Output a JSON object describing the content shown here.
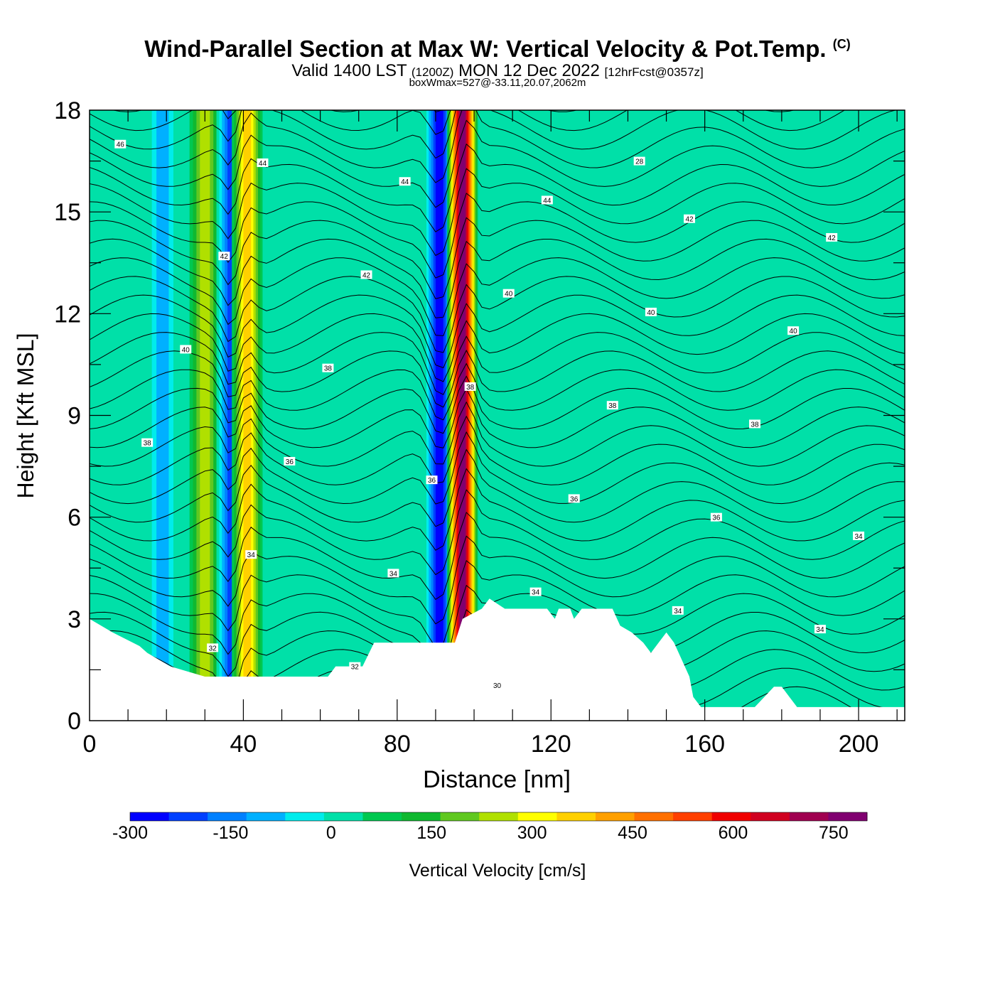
{
  "header": {
    "title": "Wind-Parallel Section at Max W: Vertical Velocity & Pot.Temp.",
    "title_mark": "(C)",
    "valid_main": "Valid 1400 LST",
    "valid_z": "(1200Z)",
    "valid_date": "MON 12 Dec 2022",
    "valid_fcst": "[12hrFcst@0357z]",
    "box_wmax": "boxWmax=527@-33.11,20.07,2062m"
  },
  "chart_data": {
    "type": "heatmap",
    "xlabel": "Distance [nm]",
    "ylabel": "Height [Kft MSL]",
    "xlim": [
      0,
      212
    ],
    "ylim": [
      0,
      18
    ],
    "x_ticks": [
      0,
      40,
      80,
      120,
      160,
      200
    ],
    "y_ticks": [
      0,
      3,
      6,
      9,
      12,
      15,
      18
    ],
    "colorbar": {
      "label": "Vertical Velocity [cm/s]",
      "min": -300,
      "max": 800,
      "step": 50,
      "tick_values": [
        -300,
        -150,
        0,
        150,
        300,
        450,
        600,
        750
      ],
      "colors": [
        "#0000ff",
        "#0040ff",
        "#0080ff",
        "#00b0ff",
        "#00ecec",
        "#00e0a8",
        "#00c850",
        "#10b830",
        "#60c820",
        "#b0e000",
        "#ffff00",
        "#ffd000",
        "#ffa000",
        "#ff7000",
        "#ff4000",
        "#f00000",
        "#d00020",
        "#a00050",
        "#800070"
      ]
    },
    "updraft_bands": [
      {
        "x": 41,
        "w_max": 300
      },
      {
        "x": 97,
        "w_max": 650
      },
      {
        "x": 30,
        "w_max": 200
      }
    ],
    "downdraft_bands": [
      {
        "x": 37,
        "w_min": -250
      },
      {
        "x": 91,
        "w_min": -300
      },
      {
        "x": 19,
        "w_min": -150
      }
    ],
    "terrain_kft": [
      [
        0,
        3
      ],
      [
        6,
        2.6
      ],
      [
        13,
        2.2
      ],
      [
        15,
        2.0
      ],
      [
        21,
        1.6
      ],
      [
        30,
        1.3
      ],
      [
        62,
        1.3
      ],
      [
        64,
        1.6
      ],
      [
        71,
        1.6
      ],
      [
        74,
        2.3
      ],
      [
        95,
        2.3
      ],
      [
        97,
        3.0
      ],
      [
        102,
        3.3
      ],
      [
        104,
        3.6
      ],
      [
        108,
        3.3
      ],
      [
        119,
        3.3
      ],
      [
        121,
        3.0
      ],
      [
        122,
        3.3
      ],
      [
        125,
        3.3
      ],
      [
        126,
        3.0
      ],
      [
        128,
        3.3
      ],
      [
        136,
        3.3
      ],
      [
        138,
        2.8
      ],
      [
        141,
        2.6
      ],
      [
        144,
        2.3
      ],
      [
        146,
        2.0
      ],
      [
        148,
        2.3
      ],
      [
        150,
        2.6
      ],
      [
        152,
        2.3
      ],
      [
        156,
        1.3
      ],
      [
        157,
        0.7
      ],
      [
        159,
        0.4
      ],
      [
        173,
        0.4
      ],
      [
        178,
        1.0
      ],
      [
        180,
        1.0
      ],
      [
        182,
        0.7
      ],
      [
        184,
        0.4
      ],
      [
        212,
        0.4
      ]
    ],
    "contour_field": "Potential Temperature",
    "contour_label_values": [
      "46",
      "44",
      "44",
      "44",
      "42",
      "42",
      "42",
      "42",
      "40",
      "40",
      "40",
      "40",
      "38",
      "38",
      "38",
      "38",
      "38",
      "36",
      "36",
      "36",
      "36",
      "34",
      "34",
      "34",
      "34",
      "34",
      "34",
      "32",
      "32",
      "30",
      "28"
    ]
  }
}
